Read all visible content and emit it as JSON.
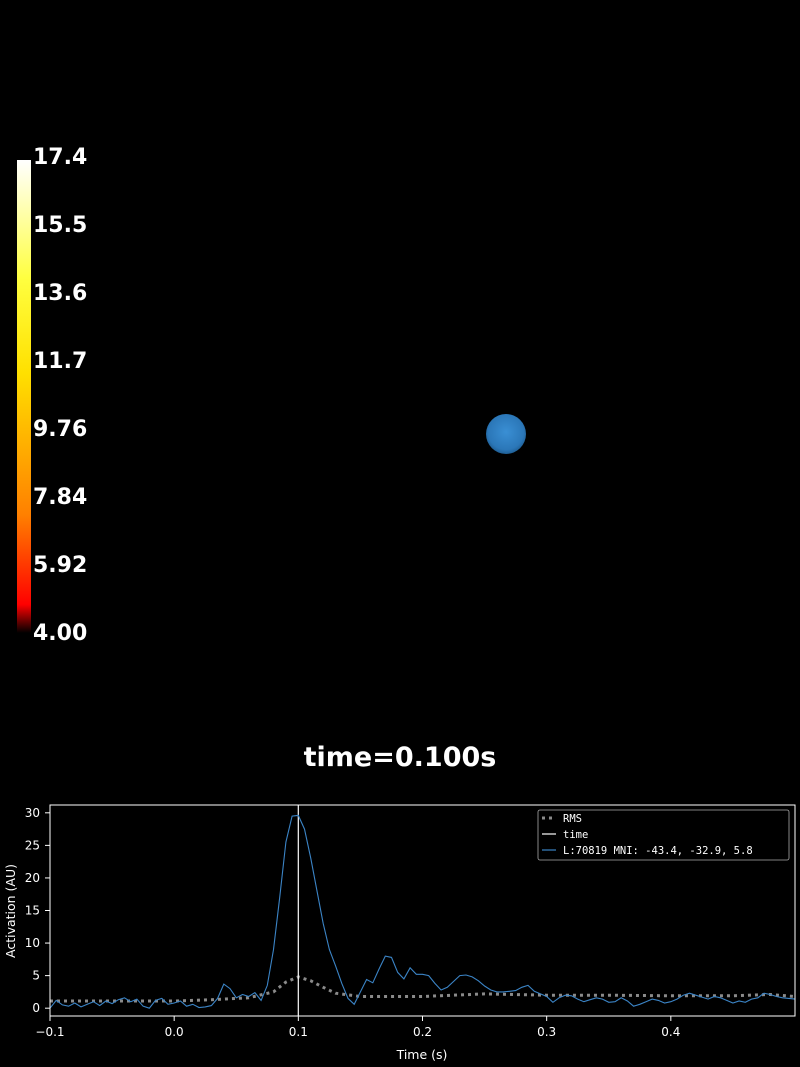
{
  "colorbar": {
    "labels": [
      "17.4",
      "15.5",
      "13.6",
      "11.7",
      "9.76",
      "7.84",
      "5.92",
      "4.00"
    ],
    "colors": {
      "top": "#ffffff",
      "upper": "#ffff40",
      "mid": "#ffe000",
      "lower": "#ff8000",
      "bottom": "#ff0000",
      "base": "#000000"
    }
  },
  "marker": {
    "name": "source-dot",
    "color": "#2f7fc1"
  },
  "time_label": "time=0.100s",
  "chart_data": {
    "type": "line",
    "xlabel": "Time (s)",
    "ylabel": "Activation (AU)",
    "xlim": [
      -0.1,
      0.5
    ],
    "ylim": [
      -1.2,
      31.2
    ],
    "xticks": [
      -0.1,
      0.0,
      0.1,
      0.2,
      0.3,
      0.4
    ],
    "xtick_labels": [
      "−0.1",
      "0.0",
      "0.1",
      "0.2",
      "0.3",
      "0.4"
    ],
    "yticks": [
      0,
      5,
      10,
      15,
      20,
      25,
      30
    ],
    "ytick_labels": [
      "0",
      "5",
      "10",
      "15",
      "20",
      "25",
      "30"
    ],
    "grid": false,
    "legend_position": "top-right",
    "time_marker": 0.1,
    "series": [
      {
        "name": "RMS",
        "style": "dotted",
        "color": "#8a8a8a",
        "x": [
          -0.1,
          -0.05,
          0.0,
          0.03,
          0.06,
          0.08,
          0.09,
          0.1,
          0.11,
          0.12,
          0.13,
          0.15,
          0.2,
          0.25,
          0.3,
          0.35,
          0.4,
          0.45,
          0.48,
          0.5
        ],
        "y": [
          1.1,
          1.1,
          1.1,
          1.3,
          1.6,
          2.5,
          4.0,
          4.8,
          4.2,
          3.2,
          2.3,
          1.8,
          1.8,
          2.2,
          2.0,
          2.0,
          1.9,
          1.9,
          2.1,
          1.8
        ]
      },
      {
        "name": "time",
        "style": "solid",
        "color": "#ffffff",
        "x": [
          0.1,
          0.1
        ],
        "y": [
          -1.2,
          31.2
        ]
      },
      {
        "name": "L:70819  MNI: -43.4, -32.9,   5.8",
        "style": "solid",
        "color": "#3b84c6",
        "x": [
          -0.1,
          -0.095,
          -0.09,
          -0.085,
          -0.08,
          -0.075,
          -0.07,
          -0.065,
          -0.06,
          -0.055,
          -0.05,
          -0.045,
          -0.04,
          -0.035,
          -0.03,
          -0.025,
          -0.02,
          -0.015,
          -0.01,
          -0.005,
          0.0,
          0.005,
          0.01,
          0.015,
          0.02,
          0.025,
          0.03,
          0.035,
          0.04,
          0.045,
          0.05,
          0.055,
          0.06,
          0.065,
          0.07,
          0.075,
          0.08,
          0.085,
          0.09,
          0.095,
          0.1,
          0.105,
          0.11,
          0.115,
          0.12,
          0.125,
          0.13,
          0.135,
          0.14,
          0.145,
          0.15,
          0.155,
          0.16,
          0.165,
          0.17,
          0.175,
          0.18,
          0.185,
          0.19,
          0.195,
          0.2,
          0.205,
          0.21,
          0.215,
          0.22,
          0.225,
          0.23,
          0.235,
          0.24,
          0.245,
          0.25,
          0.255,
          0.26,
          0.265,
          0.27,
          0.275,
          0.28,
          0.285,
          0.29,
          0.295,
          0.3,
          0.305,
          0.31,
          0.315,
          0.32,
          0.325,
          0.33,
          0.335,
          0.34,
          0.345,
          0.35,
          0.355,
          0.36,
          0.365,
          0.37,
          0.375,
          0.38,
          0.385,
          0.39,
          0.395,
          0.4,
          0.405,
          0.41,
          0.415,
          0.42,
          0.425,
          0.43,
          0.435,
          0.44,
          0.445,
          0.45,
          0.455,
          0.46,
          0.465,
          0.47,
          0.475,
          0.48,
          0.485,
          0.49,
          0.495,
          0.5
        ],
        "y": [
          0.0,
          1.2,
          0.5,
          0.3,
          0.8,
          0.2,
          0.6,
          1.0,
          0.4,
          1.1,
          0.7,
          1.3,
          1.6,
          1.0,
          1.4,
          0.3,
          0.0,
          1.2,
          1.5,
          0.6,
          0.8,
          1.1,
          0.3,
          0.6,
          0.1,
          0.2,
          0.4,
          1.5,
          3.7,
          3.0,
          1.6,
          2.1,
          1.8,
          2.4,
          1.2,
          3.5,
          9.0,
          17.0,
          25.5,
          29.5,
          29.6,
          27.5,
          23.0,
          18.0,
          13.0,
          9.0,
          6.5,
          3.8,
          1.5,
          0.6,
          2.5,
          4.4,
          3.9,
          6.0,
          8.0,
          7.8,
          5.5,
          4.5,
          6.2,
          5.2,
          5.2,
          5.0,
          3.8,
          2.8,
          3.2,
          4.1,
          5.0,
          5.1,
          4.8,
          4.2,
          3.4,
          2.8,
          2.5,
          2.5,
          2.6,
          2.7,
          3.2,
          3.5,
          2.6,
          2.2,
          1.8,
          0.9,
          1.6,
          2.0,
          1.9,
          1.4,
          1.0,
          1.3,
          1.6,
          1.4,
          0.9,
          1.0,
          1.6,
          1.1,
          0.3,
          0.6,
          1.0,
          1.4,
          1.2,
          0.8,
          1.0,
          1.4,
          2.0,
          2.3,
          2.0,
          1.7,
          1.4,
          1.8,
          1.6,
          1.2,
          0.8,
          1.1,
          0.9,
          1.4,
          1.6,
          2.3,
          2.1,
          1.8,
          1.6,
          1.5,
          1.4
        ]
      }
    ]
  }
}
